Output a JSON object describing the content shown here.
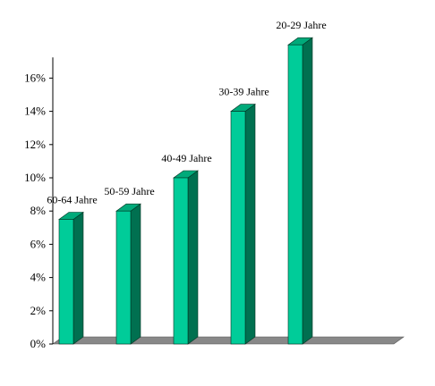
{
  "chart_data": {
    "type": "bar",
    "categories": [
      "60-64 Jahre",
      "50-59 Jahre",
      "40-49 Jahre",
      "30-39 Jahre",
      "20-29 Jahre"
    ],
    "values": [
      7.5,
      8.0,
      10.0,
      14.0,
      18.0
    ],
    "value_unit": "%",
    "title": "",
    "xlabel": "",
    "ylabel": "",
    "ylim": [
      0,
      18
    ],
    "yticks": [
      "0%",
      "2%",
      "4%",
      "6%",
      "8%",
      "10%",
      "12%",
      "14%",
      "16%"
    ],
    "grid": false,
    "legend": "none",
    "style": "3d",
    "colors": {
      "bar_front": "#00cc99",
      "bar_top": "#00aa7a",
      "bar_side": "#007050",
      "floor": "#888888",
      "axis": "#000000"
    }
  }
}
